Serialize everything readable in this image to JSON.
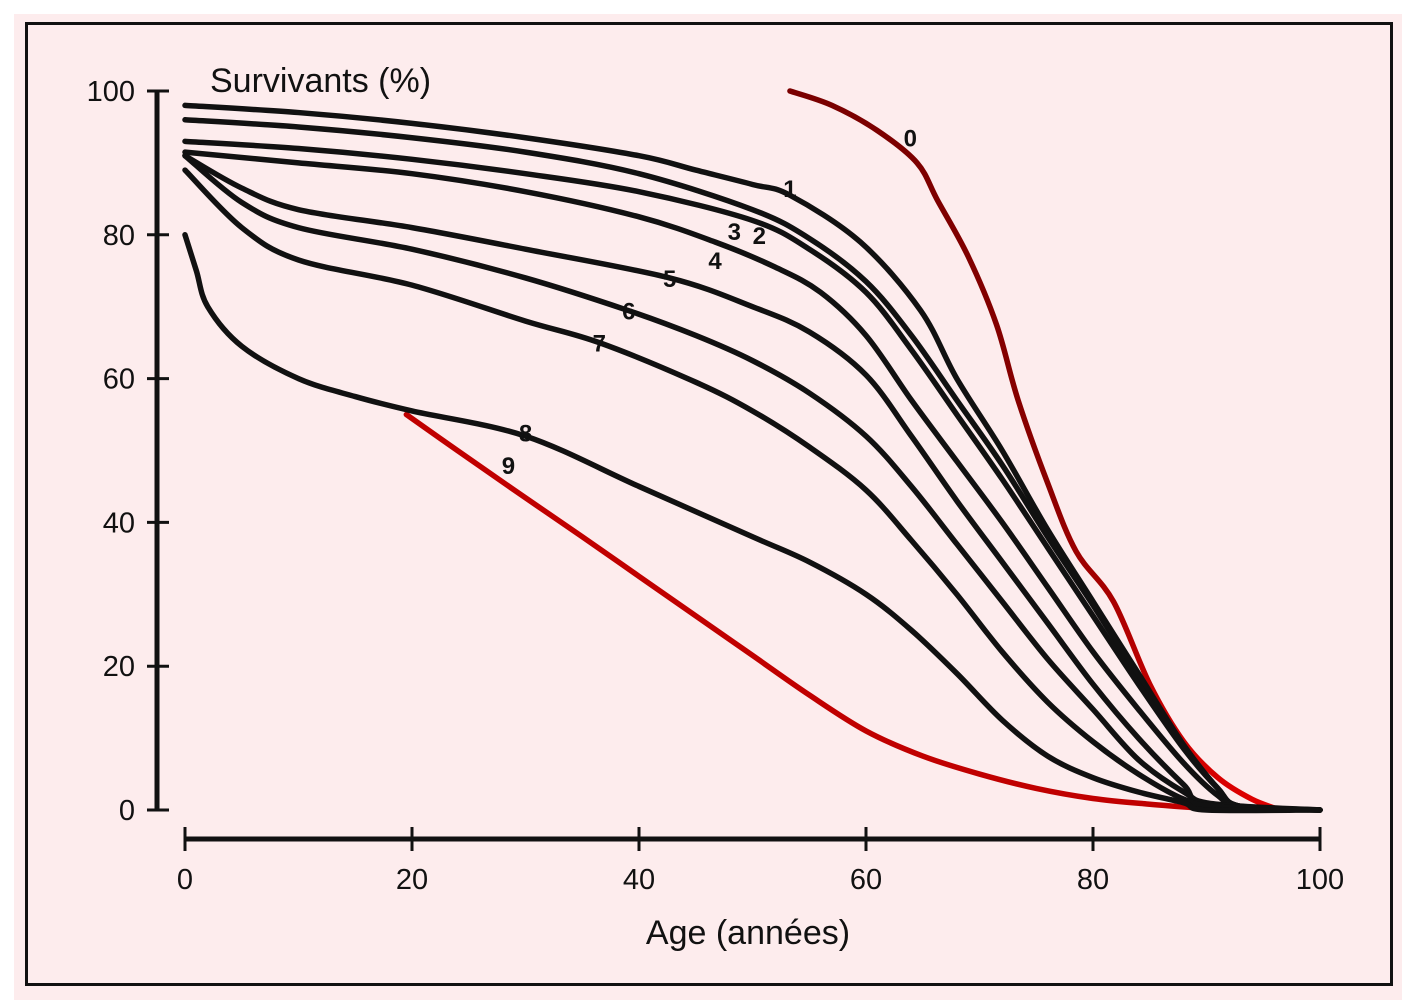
{
  "chart_data": {
    "type": "line",
    "title": "",
    "xlabel": "Age (années)",
    "ylabel": "Survivants (%)",
    "xlim": [
      0,
      100
    ],
    "ylim": [
      0,
      100
    ],
    "xticks": [
      0,
      20,
      40,
      60,
      80,
      100
    ],
    "yticks": [
      0,
      20,
      40,
      60,
      80,
      100
    ],
    "xtick_labels": [
      "0",
      "20",
      "40",
      "60",
      "80",
      "100"
    ],
    "ytick_labels": [
      "0",
      "20",
      "40",
      "60",
      "80",
      "100"
    ],
    "grid": false,
    "legend": "inline curve labels",
    "series": [
      {
        "name": "0",
        "color": "#7a0000",
        "color_end": "#e00000",
        "x": [
          53.3,
          57,
          61,
          64.5,
          66.3,
          69,
          71.5,
          73.4,
          76,
          78.5,
          81.8,
          85,
          88,
          91,
          94,
          96.5
        ],
        "y": [
          100,
          98,
          94.5,
          90,
          84.8,
          77,
          67.5,
          57,
          45.5,
          36,
          29,
          17.5,
          9.5,
          4.5,
          1.5,
          0
        ]
      },
      {
        "name": "1",
        "color": "#111111",
        "x": [
          0,
          10,
          20,
          30,
          40,
          45,
          50,
          53.3,
          59.5,
          64.8,
          68,
          72,
          76,
          80,
          84,
          88,
          91,
          93,
          100
        ],
        "y": [
          98,
          97,
          95.5,
          93.5,
          91,
          89,
          87,
          85.5,
          79,
          69.5,
          60,
          50,
          39,
          29,
          19,
          9,
          3,
          0.5,
          0
        ]
      },
      {
        "name": "2",
        "color": "#111111",
        "x": [
          0,
          10,
          20,
          30,
          40,
          50,
          55,
          60,
          64,
          68,
          72,
          76,
          80,
          84,
          88,
          91,
          93,
          100
        ],
        "y": [
          96,
          95,
          93.5,
          91.5,
          88.5,
          83.5,
          79.5,
          73.5,
          66,
          57,
          48,
          38,
          28.5,
          18.5,
          9,
          3,
          0.5,
          0
        ]
      },
      {
        "name": "3",
        "color": "#111111",
        "x": [
          0,
          10,
          20,
          30,
          40,
          50,
          55,
          60,
          64,
          68,
          72,
          76,
          80,
          84,
          88,
          91,
          93,
          100
        ],
        "y": [
          93,
          92,
          90.5,
          88.5,
          86,
          82,
          78,
          72,
          64,
          55,
          46,
          36.5,
          27,
          17.5,
          8.5,
          3,
          0.5,
          0
        ]
      },
      {
        "name": "4",
        "color": "#111111",
        "x": [
          0,
          10,
          20,
          30,
          40,
          46.7,
          52,
          56,
          60,
          64,
          68,
          72,
          76,
          80,
          84,
          88,
          91,
          93,
          100
        ],
        "y": [
          91.5,
          90,
          88.5,
          86,
          82.5,
          79,
          75.5,
          72,
          66,
          57,
          48.5,
          40,
          31,
          22,
          14,
          6.5,
          2,
          0.5,
          0
        ]
      },
      {
        "name": "5",
        "color": "#111111",
        "x": [
          0,
          5,
          10,
          20,
          30,
          42.7,
          50,
          55,
          60,
          64,
          68,
          72,
          76,
          80,
          84,
          88,
          90,
          100
        ],
        "y": [
          91,
          86.5,
          83.5,
          81,
          78,
          74,
          70,
          66.5,
          60.5,
          52,
          43,
          34.5,
          26,
          17.5,
          10,
          3.5,
          1,
          0
        ]
      },
      {
        "name": "6",
        "color": "#111111",
        "x": [
          0,
          5,
          10,
          20,
          30,
          39,
          45,
          50,
          55,
          60,
          64,
          68,
          72,
          76,
          80,
          84,
          88,
          91,
          100
        ],
        "y": [
          91,
          84.5,
          81,
          78,
          74,
          69.5,
          66,
          62.5,
          58,
          52,
          45,
          37,
          29,
          21,
          14,
          7,
          2.5,
          0.5,
          0
        ]
      },
      {
        "name": "7",
        "color": "#111111",
        "x": [
          0,
          5,
          10,
          20,
          30,
          36.5,
          45,
          50,
          55,
          60,
          64,
          68,
          72,
          76,
          80,
          84,
          88,
          91,
          100
        ],
        "y": [
          89,
          81,
          76.5,
          73,
          68,
          65,
          59.5,
          55.5,
          50.5,
          44.5,
          37.5,
          30,
          22,
          15,
          9.5,
          5,
          1.5,
          0.5,
          0
        ]
      },
      {
        "name": "8",
        "color": "#111111",
        "x": [
          0,
          1,
          2,
          5,
          10,
          15,
          20,
          30,
          40,
          50,
          55,
          60,
          64,
          68,
          72,
          76,
          80,
          84,
          88,
          90,
          100
        ],
        "y": [
          80,
          75,
          70,
          64.5,
          60,
          57.5,
          55.5,
          52,
          45,
          38,
          34.5,
          30,
          25,
          19,
          12.5,
          7.5,
          4.5,
          2.5,
          1,
          0,
          0
        ]
      },
      {
        "name": "9",
        "color": "#c00000",
        "x": [
          19.5,
          24,
          29,
          35,
          40,
          45,
          50,
          55,
          60,
          65,
          70,
          75,
          80,
          85,
          90,
          92
        ],
        "y": [
          55,
          50,
          44.5,
          38,
          32.5,
          27,
          21.5,
          16,
          11,
          7.5,
          5,
          3,
          1.6,
          0.8,
          0.2,
          0
        ]
      }
    ],
    "annotations": [
      {
        "text": "0",
        "x": 63.9,
        "y": 93.5
      },
      {
        "text": "1",
        "x": 53.3,
        "y": 86.5
      },
      {
        "text": "3",
        "x": 48.4,
        "y": 80.5
      },
      {
        "text": "2",
        "x": 50.6,
        "y": 80
      },
      {
        "text": "4",
        "x": 46.7,
        "y": 76.5
      },
      {
        "text": "5",
        "x": 42.7,
        "y": 74
      },
      {
        "text": "6",
        "x": 39.1,
        "y": 69.5
      },
      {
        "text": "7",
        "x": 36.5,
        "y": 65
      },
      {
        "text": "8",
        "x": 30,
        "y": 52.5
      },
      {
        "text": "9",
        "x": 28.5,
        "y": 48
      }
    ]
  }
}
